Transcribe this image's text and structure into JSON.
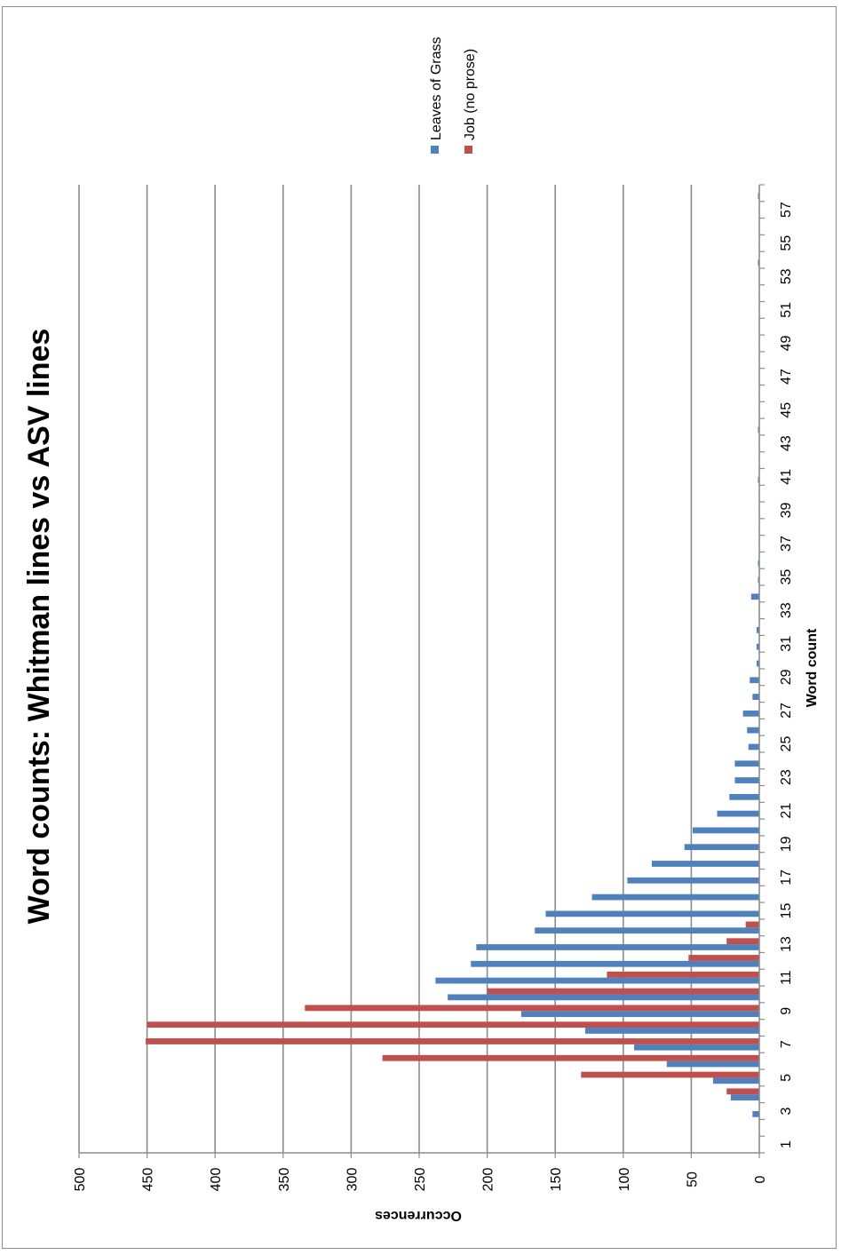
{
  "chart_data": {
    "type": "bar",
    "orientation": "rotated-90-clockwise",
    "title": "Word counts: Whitman lines vs ASV lines",
    "xlabel": "Word count",
    "ylabel": "Occurrences",
    "ylim": [
      0,
      500
    ],
    "yticks": [
      0,
      50,
      100,
      150,
      200,
      250,
      300,
      350,
      400,
      450,
      500
    ],
    "xtick_labels": [
      "1",
      "3",
      "5",
      "7",
      "9",
      "11",
      "13",
      "15",
      "17",
      "19",
      "21",
      "23",
      "25",
      "27",
      "29",
      "31",
      "33",
      "35",
      "37",
      "39",
      "41",
      "43",
      "45",
      "47",
      "49",
      "51",
      "53",
      "55",
      "57"
    ],
    "grid": true,
    "legend_position": "top-right",
    "categories": [
      1,
      2,
      3,
      4,
      5,
      6,
      7,
      8,
      9,
      10,
      11,
      12,
      13,
      14,
      15,
      16,
      17,
      18,
      19,
      20,
      21,
      22,
      23,
      24,
      25,
      26,
      27,
      28,
      29,
      30,
      31,
      32,
      33,
      34,
      35,
      36,
      37,
      38,
      39,
      40,
      41,
      42,
      43,
      44,
      45,
      46,
      47,
      48,
      49,
      50,
      51,
      52,
      53,
      54,
      55,
      56,
      57,
      58
    ],
    "series": [
      {
        "name": "Leaves of Grass",
        "color": "#4f81bd",
        "values": [
          0,
          0,
          5,
          21,
          34,
          68,
          92,
          128,
          175,
          229,
          238,
          212,
          208,
          165,
          157,
          123,
          97,
          79,
          55,
          49,
          31,
          22,
          18,
          18,
          8,
          9,
          12,
          5,
          7,
          2,
          2,
          2,
          0,
          6,
          1,
          1,
          0,
          0,
          0,
          0,
          1,
          0,
          0,
          1,
          0,
          0,
          0,
          0,
          0,
          0,
          0,
          0,
          0,
          1,
          0,
          0,
          0,
          1
        ]
      },
      {
        "name": "Job (no prose)",
        "color": "#c0504d",
        "values": [
          0,
          0,
          0,
          24,
          131,
          277,
          451,
          450,
          334,
          200,
          112,
          52,
          24,
          10,
          0,
          0,
          0,
          0,
          0,
          0,
          0,
          0,
          0,
          0,
          0,
          0,
          0,
          0,
          0,
          0,
          0,
          0,
          0,
          0,
          0,
          0,
          0,
          0,
          0,
          0,
          0,
          0,
          0,
          0,
          0,
          0,
          0,
          0,
          0,
          0,
          0,
          0,
          0,
          0,
          0,
          0,
          0,
          0
        ]
      }
    ]
  }
}
